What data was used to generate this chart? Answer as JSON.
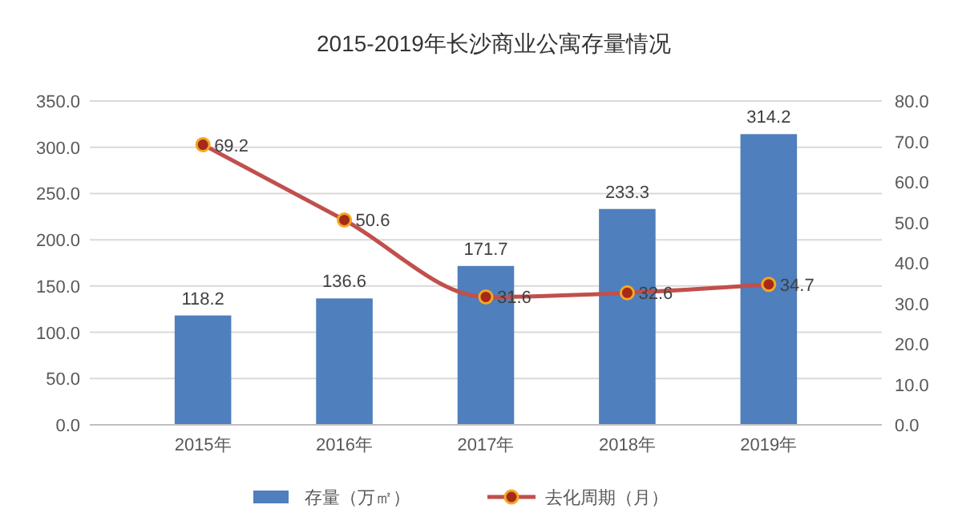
{
  "chart_data": {
    "type": "bar",
    "title": "2015-2019年长沙商业公寓存量情况",
    "categories": [
      "2015年",
      "2016年",
      "2017年",
      "2018年",
      "2019年"
    ],
    "series": [
      {
        "name": "存量（万㎡）",
        "color": "#4f7fbc",
        "values": [
          118.2,
          136.6,
          171.7,
          233.3,
          314.2
        ]
      },
      {
        "name": "去化周期（月）",
        "type": "line",
        "axis": "y2",
        "color": "#c0504d",
        "values": [
          69.2,
          50.6,
          31.6,
          32.6,
          34.7
        ]
      }
    ],
    "ylim": [
      0,
      350
    ],
    "yticks": [
      {
        "value": 0,
        "label": "0.0"
      },
      {
        "value": 50,
        "label": "50.0"
      },
      {
        "value": 100,
        "label": "100.0"
      },
      {
        "value": 150,
        "label": "150.0"
      },
      {
        "value": 200,
        "label": "200.0"
      },
      {
        "value": 250,
        "label": "250.0"
      },
      {
        "value": 300,
        "label": "300.0"
      },
      {
        "value": 350,
        "label": "350.0"
      }
    ],
    "y2lim": [
      0,
      80
    ],
    "y2ticks": [
      {
        "value": 0,
        "label": "0.0"
      },
      {
        "value": 10,
        "label": "10.0"
      },
      {
        "value": 20,
        "label": "20.0"
      },
      {
        "value": 30,
        "label": "30.0"
      },
      {
        "value": 40,
        "label": "40.0"
      },
      {
        "value": 50,
        "label": "50.0"
      },
      {
        "value": 60,
        "label": "60.0"
      },
      {
        "value": 70,
        "label": "70.0"
      },
      {
        "value": 80,
        "label": "80.0"
      }
    ],
    "grid": "y",
    "legend": "bottom",
    "marker": "circle",
    "data_labels": true
  }
}
